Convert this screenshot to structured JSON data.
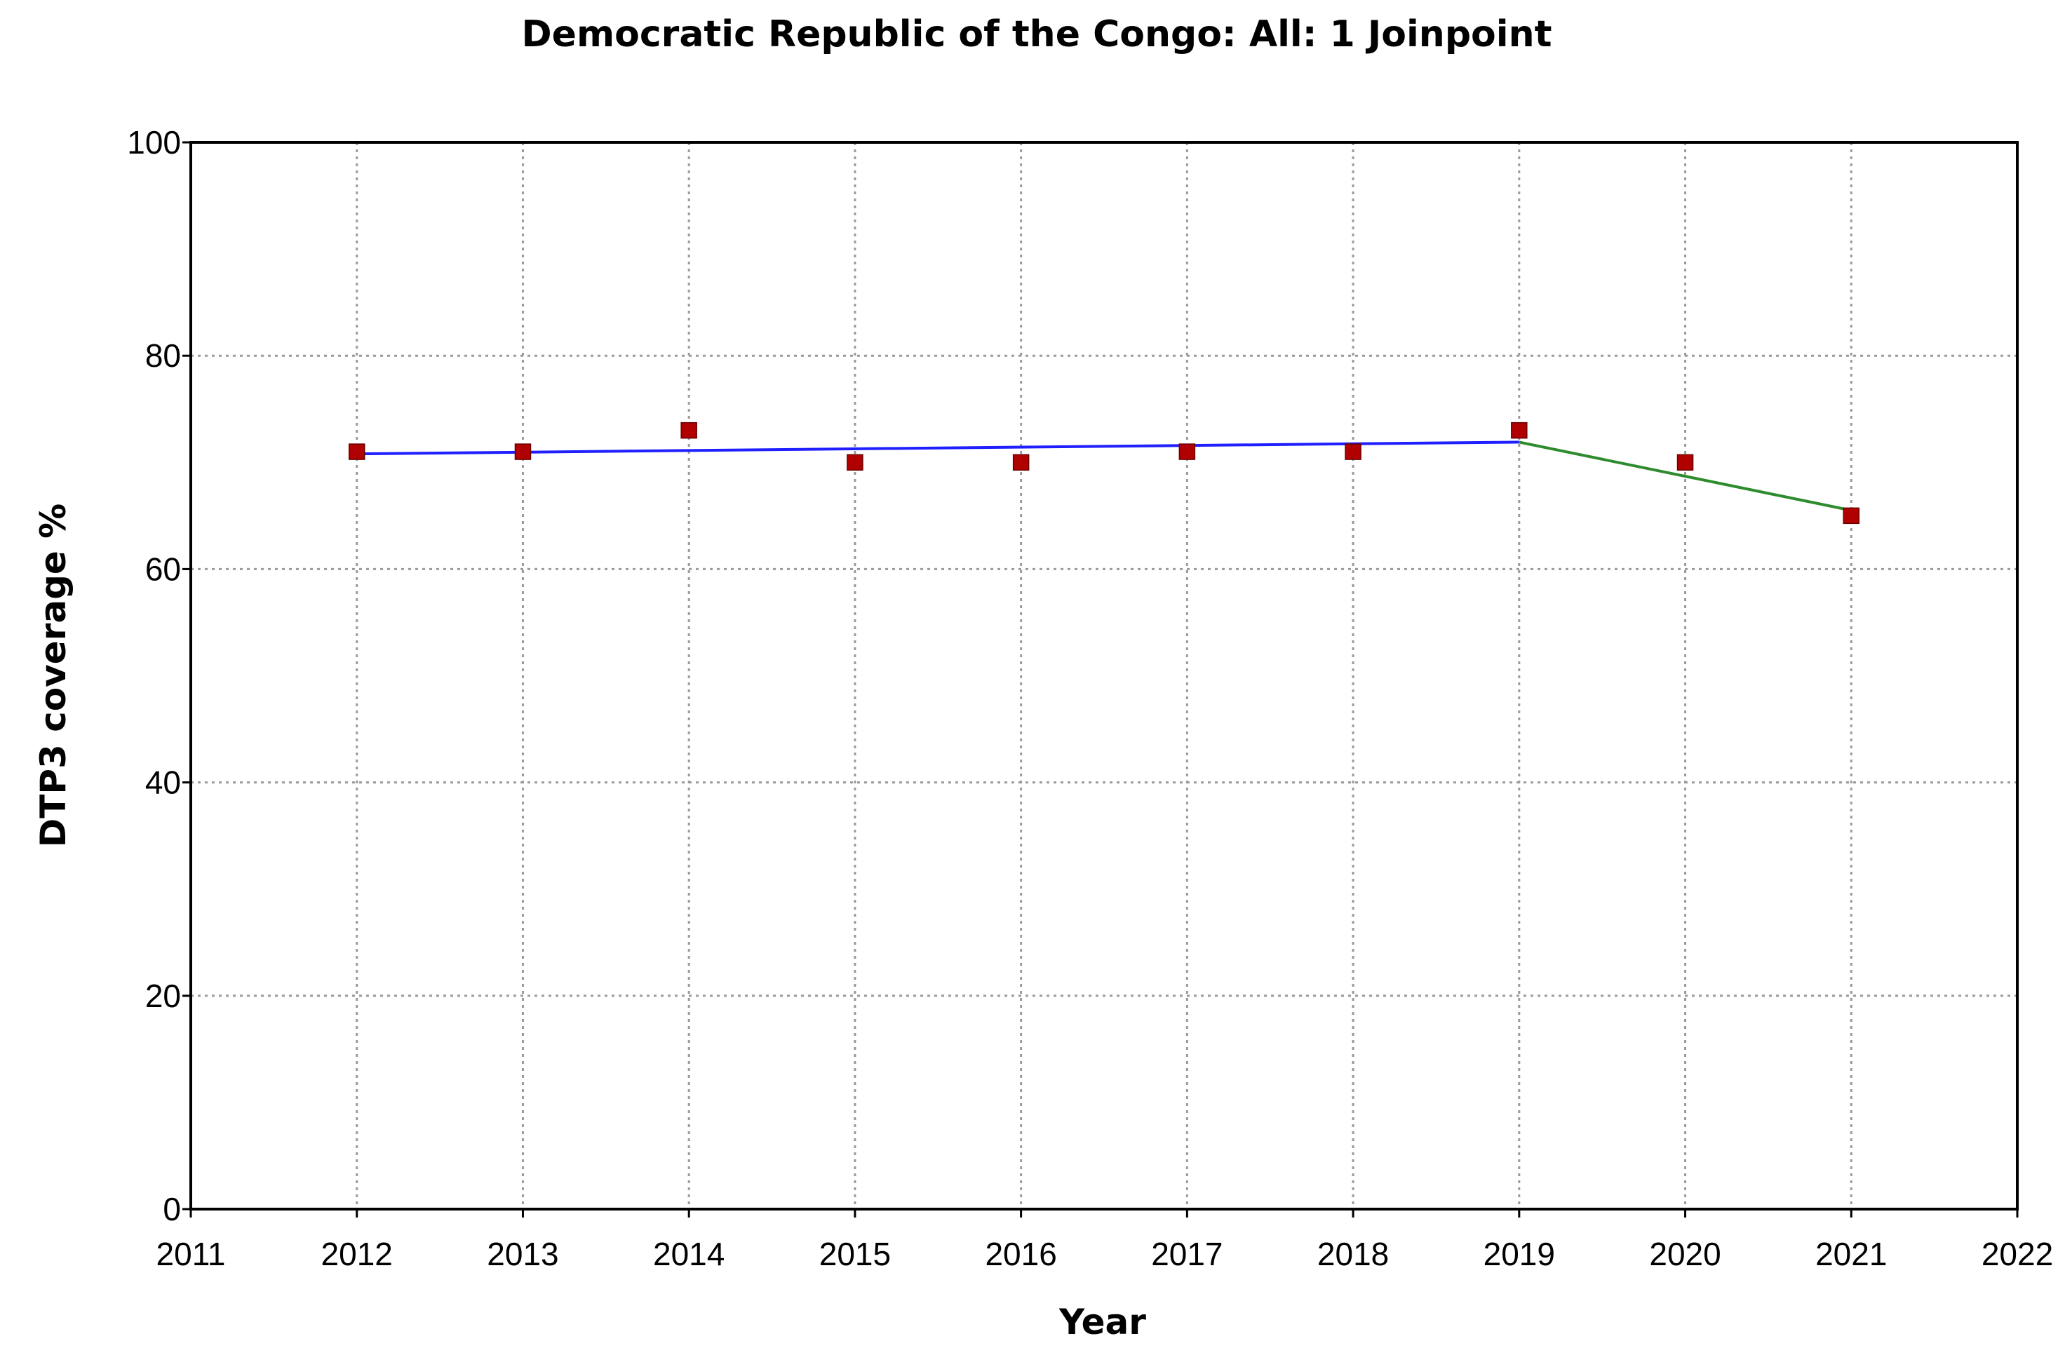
{
  "chart_data": {
    "type": "scatter",
    "title": "Democratic Republic of  the Congo: All: 1 Joinpoint",
    "xlabel": "Year",
    "ylabel": "DTP3 coverage %",
    "xlim": [
      2011,
      2022
    ],
    "ylim": [
      0,
      100
    ],
    "x_ticks": [
      2011,
      2012,
      2013,
      2014,
      2015,
      2016,
      2017,
      2018,
      2019,
      2020,
      2021,
      2022
    ],
    "y_ticks": [
      0,
      20,
      40,
      60,
      80,
      100
    ],
    "grid": true,
    "legend": "none",
    "observed": {
      "x": [
        2012,
        2013,
        2014,
        2015,
        2016,
        2017,
        2018,
        2019,
        2020,
        2021
      ],
      "y": [
        71,
        71,
        73,
        70,
        70,
        71,
        71,
        73,
        70,
        65
      ],
      "color": "#b00000"
    },
    "segments": [
      {
        "x": [
          2012,
          2019
        ],
        "y": [
          70.8,
          71.9
        ],
        "color": "#1f1fff"
      },
      {
        "x": [
          2019,
          2021
        ],
        "y": [
          71.9,
          65.5
        ],
        "color": "#2e8b2e"
      }
    ]
  }
}
